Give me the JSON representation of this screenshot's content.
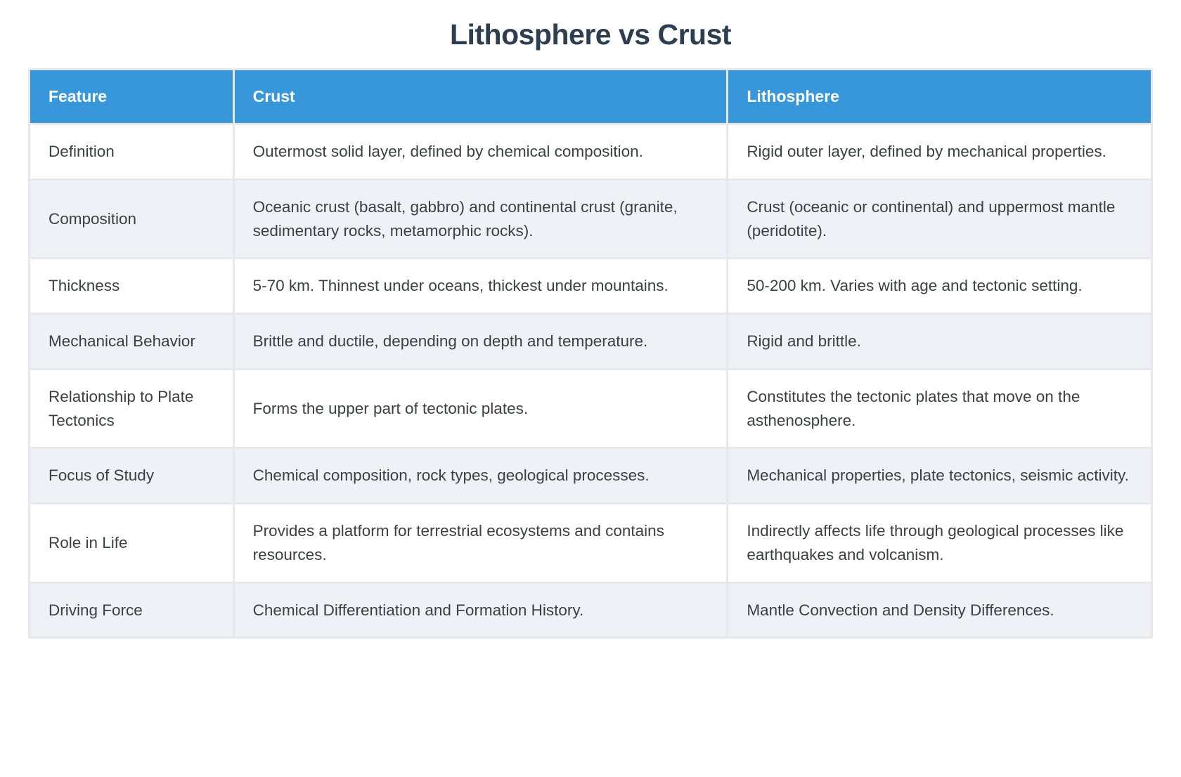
{
  "page": {
    "title": "Lithosphere vs Crust"
  },
  "table": {
    "columns": [
      {
        "key": "feature",
        "label": "Feature"
      },
      {
        "key": "crust",
        "label": "Crust"
      },
      {
        "key": "lithosphere",
        "label": "Lithosphere"
      }
    ],
    "rows": [
      {
        "feature": "Definition",
        "crust": "Outermost solid layer, defined by chemical composition.",
        "lithosphere": "Rigid outer layer, defined by mechanical properties."
      },
      {
        "feature": "Composition",
        "crust": "Oceanic crust (basalt, gabbro) and continental crust (granite, sedimentary rocks, metamorphic rocks).",
        "lithosphere": "Crust (oceanic or continental) and uppermost mantle (peridotite)."
      },
      {
        "feature": "Thickness",
        "crust": "5-70 km. Thinnest under oceans, thickest under mountains.",
        "lithosphere": "50-200 km. Varies with age and tectonic setting."
      },
      {
        "feature": "Mechanical Behavior",
        "crust": "Brittle and ductile, depending on depth and temperature.",
        "lithosphere": "Rigid and brittle."
      },
      {
        "feature": "Relationship to Plate Tectonics",
        "crust": "Forms the upper part of tectonic plates.",
        "lithosphere": "Constitutes the tectonic plates that move on the asthenosphere."
      },
      {
        "feature": "Focus of Study",
        "crust": "Chemical composition, rock types, geological processes.",
        "lithosphere": "Mechanical properties, plate tectonics, seismic activity."
      },
      {
        "feature": "Role in Life",
        "crust": "Provides a platform for terrestrial ecosystems and contains resources.",
        "lithosphere": "Indirectly affects life through geological processes like earthquakes and volcanism."
      },
      {
        "feature": "Driving Force",
        "crust": "Chemical Differentiation and Formation History.",
        "lithosphere": "Mantle Convection and Density Differences."
      }
    ]
  },
  "colors": {
    "page_bg": "#ffffff",
    "header_bg": "#3897db",
    "header_text": "#ffffff",
    "stripe_bg": "#eef2f7",
    "row_bg": "#ffffff",
    "grid": "#e6e8eb",
    "title_text": "#2c3e50",
    "body_text": "#3c4043"
  }
}
